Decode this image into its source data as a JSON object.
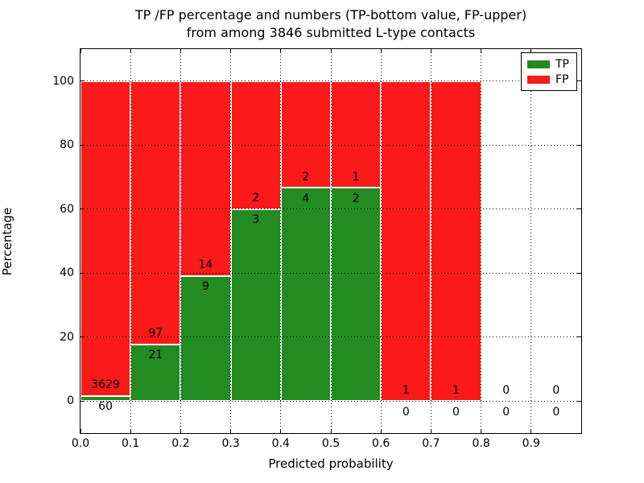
{
  "title": {
    "line1": "TP /FP percentage and numbers (TP-bottom value, FP-upper)",
    "line2": "from among 3846 submitted L-type contacts"
  },
  "chart_data": {
    "type": "bar",
    "stacked": true,
    "normalized_to_percent": true,
    "xlabel": "Predicted probability",
    "ylabel": "Percentage",
    "xlim": [
      0.0,
      1.0
    ],
    "ylim": [
      -10,
      110
    ],
    "grid": true,
    "bin_width": 0.1,
    "bin_starts": [
      0.0,
      0.1,
      0.2,
      0.3,
      0.4,
      0.5,
      0.6,
      0.7,
      0.8,
      0.9
    ],
    "series": [
      {
        "name": "TP",
        "color": "#228b22",
        "counts": [
          60,
          21,
          9,
          3,
          4,
          2,
          0,
          0,
          0,
          0
        ]
      },
      {
        "name": "FP",
        "color": "#fa1a1a",
        "counts": [
          3629,
          97,
          14,
          2,
          2,
          1,
          1,
          1,
          0,
          0
        ]
      }
    ],
    "tp_percent": [
      1.63,
      17.8,
      39.13,
      60.0,
      66.67,
      66.67,
      0.0,
      0.0,
      0.0,
      0.0
    ],
    "x_ticks": {
      "values": [
        0.0,
        0.1,
        0.2,
        0.3,
        0.4,
        0.5,
        0.6,
        0.7,
        0.8,
        0.9
      ],
      "labels": [
        "0.0",
        "0.1",
        "0.2",
        "0.3",
        "0.4",
        "0.5",
        "0.6",
        "0.7",
        "0.8",
        "0.9"
      ]
    },
    "y_ticks": {
      "values": [
        0,
        20,
        40,
        60,
        80,
        100
      ],
      "labels": [
        "0",
        "20",
        "40",
        "60",
        "80",
        "100"
      ]
    },
    "legend": {
      "position": "upper right",
      "entries": [
        {
          "label": "TP",
          "color": "#228b22"
        },
        {
          "label": "FP",
          "color": "#fa1a1a"
        }
      ]
    }
  }
}
